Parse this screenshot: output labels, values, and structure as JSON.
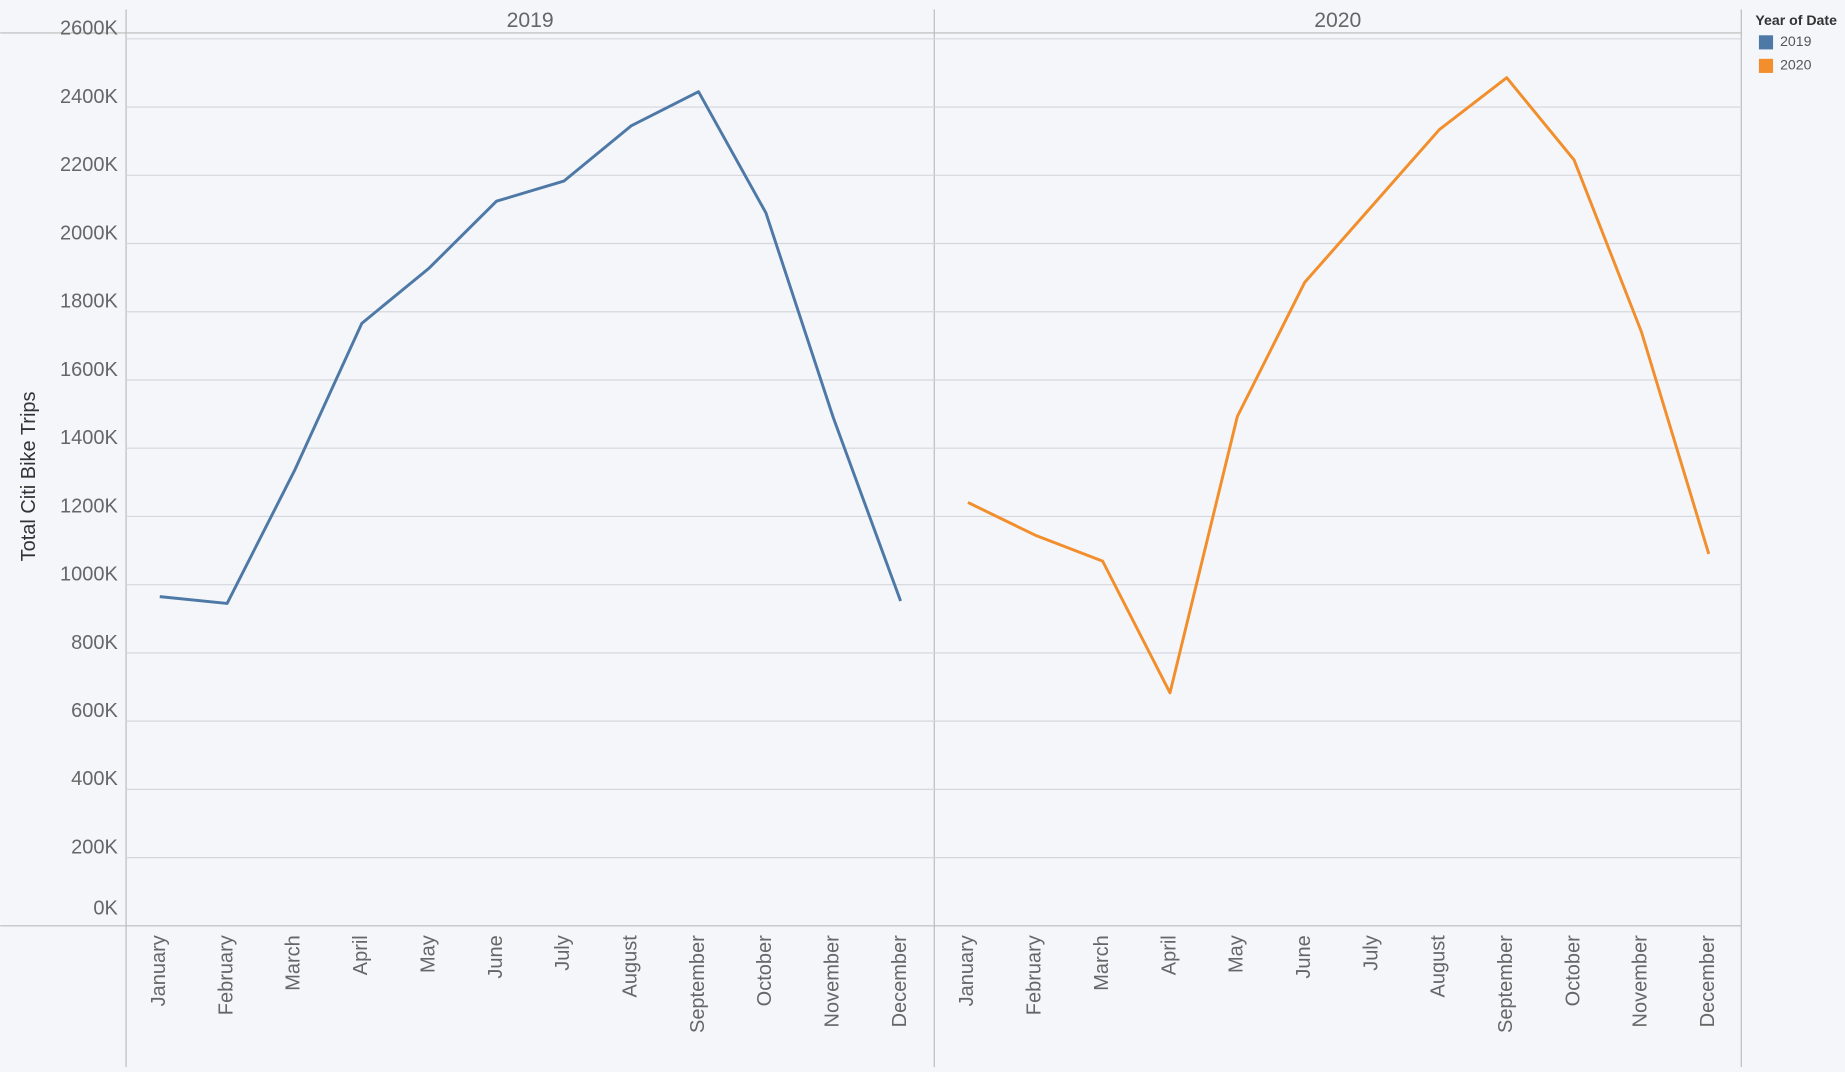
{
  "chart_data": {
    "type": "line",
    "y_label": "Total Citi Bike Trips",
    "legend_title": "Year of Date",
    "legend_position": "top-right",
    "grid": true,
    "categories": [
      "January",
      "February",
      "March",
      "April",
      "May",
      "June",
      "July",
      "August",
      "September",
      "October",
      "November",
      "December"
    ],
    "series": [
      {
        "name": "2019",
        "color": "#4e79a7",
        "values": [
          965000,
          945000,
          1334000,
          1766000,
          1928000,
          2124000,
          2183000,
          2345000,
          2445000,
          2090000,
          1490000,
          952000
        ]
      },
      {
        "name": "2020",
        "color": "#f28e2b",
        "values": [
          1241000,
          1145000,
          1069000,
          683000,
          1493000,
          1886000,
          2110000,
          2334000,
          2486000,
          2245000,
          1741000,
          1090000
        ]
      }
    ],
    "ylim": [
      0,
      2650000
    ],
    "yticks": [
      {
        "value": 0,
        "label": "0K"
      },
      {
        "value": 200000,
        "label": "200K"
      },
      {
        "value": 400000,
        "label": "400K"
      },
      {
        "value": 600000,
        "label": "600K"
      },
      {
        "value": 800000,
        "label": "800K"
      },
      {
        "value": 1000000,
        "label": "1000K"
      },
      {
        "value": 1200000,
        "label": "1200K"
      },
      {
        "value": 1400000,
        "label": "1400K"
      },
      {
        "value": 1600000,
        "label": "1600K"
      },
      {
        "value": 1800000,
        "label": "1800K"
      },
      {
        "value": 2000000,
        "label": "2000K"
      },
      {
        "value": 2200000,
        "label": "2200K"
      },
      {
        "value": 2400000,
        "label": "2400K"
      },
      {
        "value": 2600000,
        "label": "2600K"
      }
    ]
  }
}
